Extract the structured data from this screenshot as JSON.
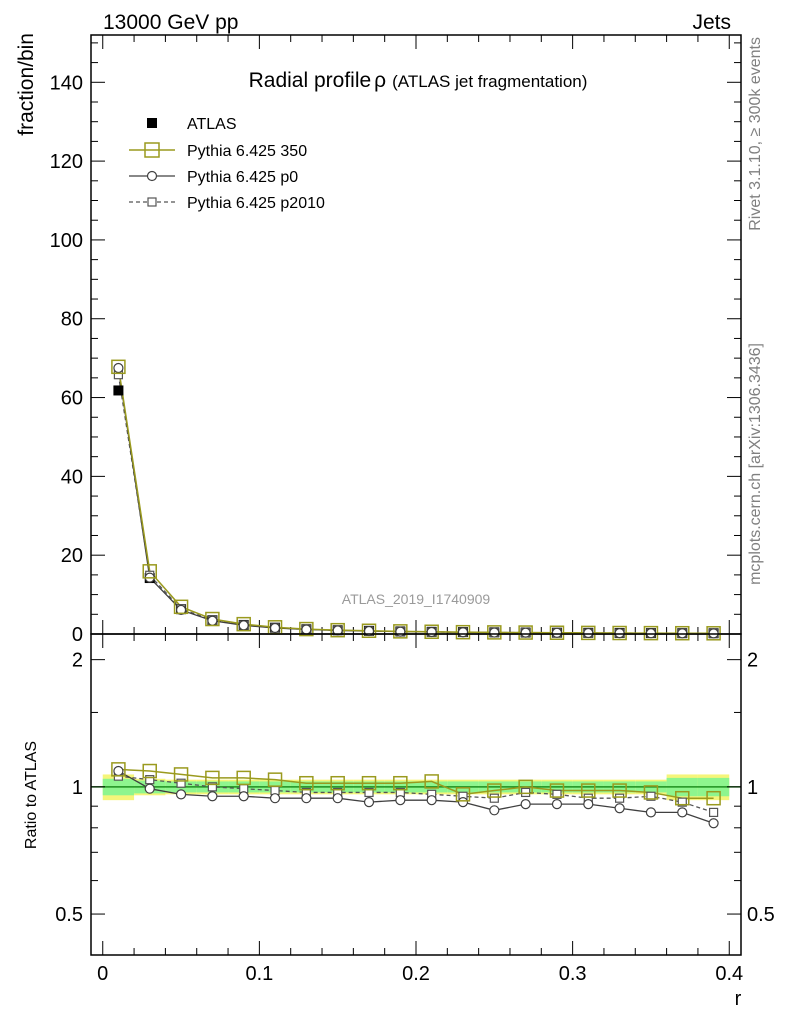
{
  "header": {
    "left": "13000 GeV pp",
    "right": "Jets"
  },
  "title": {
    "main": "Radial profile",
    "symbol": "ρ",
    "sub": "(ATLAS jet fragmentation)"
  },
  "side_labels": {
    "rivet": "Rivet 3.1.10, ≥ 300k events",
    "mcplots": "mcplots.cern.ch [arXiv:1306.3436]"
  },
  "analysis_label": "ATLAS_2019_I1740909",
  "colors": {
    "atlas": "#000000",
    "p350": "#9a9a1e",
    "p0": "#404040",
    "p2010": "#555555",
    "band_inner": "#8ef58e",
    "band_outer": "#f5f57a",
    "ref_line": "#1f8f1f"
  },
  "chart_data": [
    {
      "type": "line",
      "panel": "main",
      "ylabel": "fraction/bin",
      "xlim": [
        -0.0075,
        0.4075
      ],
      "ylim": [
        0,
        152
      ],
      "yticks": [
        0,
        20,
        40,
        60,
        80,
        100,
        120,
        140
      ],
      "ytick_labels": [
        "0",
        "20",
        "40",
        "60",
        "80",
        "100",
        "120",
        "140"
      ],
      "x": [
        0.01,
        0.03,
        0.05,
        0.07,
        0.09,
        0.11,
        0.13,
        0.15,
        0.17,
        0.19,
        0.21,
        0.23,
        0.25,
        0.27,
        0.29,
        0.31,
        0.33,
        0.35,
        0.37,
        0.39
      ],
      "series": [
        {
          "name": "ATLAS",
          "key": "atlas",
          "values": [
            61.8,
            14.2,
            6.3,
            3.5,
            2.3,
            1.6,
            1.2,
            0.95,
            0.8,
            0.65,
            0.55,
            0.48,
            0.42,
            0.37,
            0.33,
            0.29,
            0.26,
            0.23,
            0.21,
            0.19
          ]
        },
        {
          "name": "Pythia 6.425 350",
          "key": "p350",
          "values": [
            67.8,
            15.9,
            6.9,
            3.8,
            2.5,
            1.7,
            1.25,
            0.97,
            0.82,
            0.67,
            0.57,
            0.46,
            0.41,
            0.37,
            0.32,
            0.28,
            0.25,
            0.22,
            0.2,
            0.18
          ]
        },
        {
          "name": "Pythia 6.425 p0",
          "key": "p0",
          "values": [
            67.5,
            14.3,
            6.1,
            3.35,
            2.2,
            1.52,
            1.14,
            0.9,
            0.74,
            0.61,
            0.51,
            0.44,
            0.37,
            0.34,
            0.3,
            0.26,
            0.23,
            0.2,
            0.18,
            0.16
          ]
        },
        {
          "name": "Pythia 6.425 p2010",
          "key": "p2010",
          "values": [
            65.8,
            14.9,
            6.4,
            3.5,
            2.3,
            1.58,
            1.17,
            0.92,
            0.78,
            0.64,
            0.53,
            0.45,
            0.4,
            0.36,
            0.32,
            0.27,
            0.24,
            0.22,
            0.19,
            0.17
          ]
        }
      ],
      "legend": "top-left"
    },
    {
      "type": "line",
      "panel": "ratio",
      "ylabel": "Ratio to ATLAS",
      "xlabel": "r",
      "xlim": [
        -0.0075,
        0.4075
      ],
      "ylim": [
        0.4,
        2.3
      ],
      "log_y": true,
      "yticks": [
        0.5,
        1,
        2
      ],
      "ytick_labels": [
        "0.5",
        "1",
        "2"
      ],
      "xticks": [
        0,
        0.1,
        0.2,
        0.3,
        0.4
      ],
      "xtick_labels": [
        "0",
        "0.1",
        "0.2",
        "0.3",
        "0.4"
      ],
      "x": [
        0.01,
        0.03,
        0.05,
        0.07,
        0.09,
        0.11,
        0.13,
        0.15,
        0.17,
        0.19,
        0.21,
        0.23,
        0.25,
        0.27,
        0.29,
        0.31,
        0.33,
        0.35,
        0.37,
        0.39
      ],
      "band_inner": [
        0.045,
        0.035,
        0.03,
        0.03,
        0.03,
        0.03,
        0.03,
        0.03,
        0.03,
        0.03,
        0.03,
        0.03,
        0.03,
        0.03,
        0.03,
        0.03,
        0.03,
        0.03,
        0.05,
        0.05
      ],
      "band_outer": [
        0.07,
        0.045,
        0.04,
        0.04,
        0.04,
        0.04,
        0.04,
        0.04,
        0.04,
        0.04,
        0.04,
        0.04,
        0.04,
        0.04,
        0.04,
        0.04,
        0.04,
        0.04,
        0.07,
        0.07
      ],
      "series": [
        {
          "name": "Pythia 6.425 350",
          "key": "p350",
          "values": [
            1.1,
            1.09,
            1.07,
            1.05,
            1.05,
            1.04,
            1.02,
            1.02,
            1.02,
            1.02,
            1.03,
            0.96,
            0.98,
            1.0,
            0.98,
            0.98,
            0.98,
            0.97,
            0.94,
            0.94
          ]
        },
        {
          "name": "Pythia 6.425 p0",
          "key": "p0",
          "values": [
            1.09,
            0.99,
            0.96,
            0.95,
            0.95,
            0.94,
            0.94,
            0.94,
            0.92,
            0.93,
            0.93,
            0.92,
            0.88,
            0.91,
            0.91,
            0.91,
            0.89,
            0.87,
            0.87,
            0.82
          ]
        },
        {
          "name": "Pythia 6.425 p2010",
          "key": "p2010",
          "values": [
            1.06,
            1.04,
            1.02,
            1.0,
            0.99,
            0.98,
            0.97,
            0.97,
            0.97,
            0.97,
            0.96,
            0.95,
            0.94,
            0.97,
            0.96,
            0.94,
            0.94,
            0.95,
            0.92,
            0.87
          ]
        }
      ]
    }
  ]
}
